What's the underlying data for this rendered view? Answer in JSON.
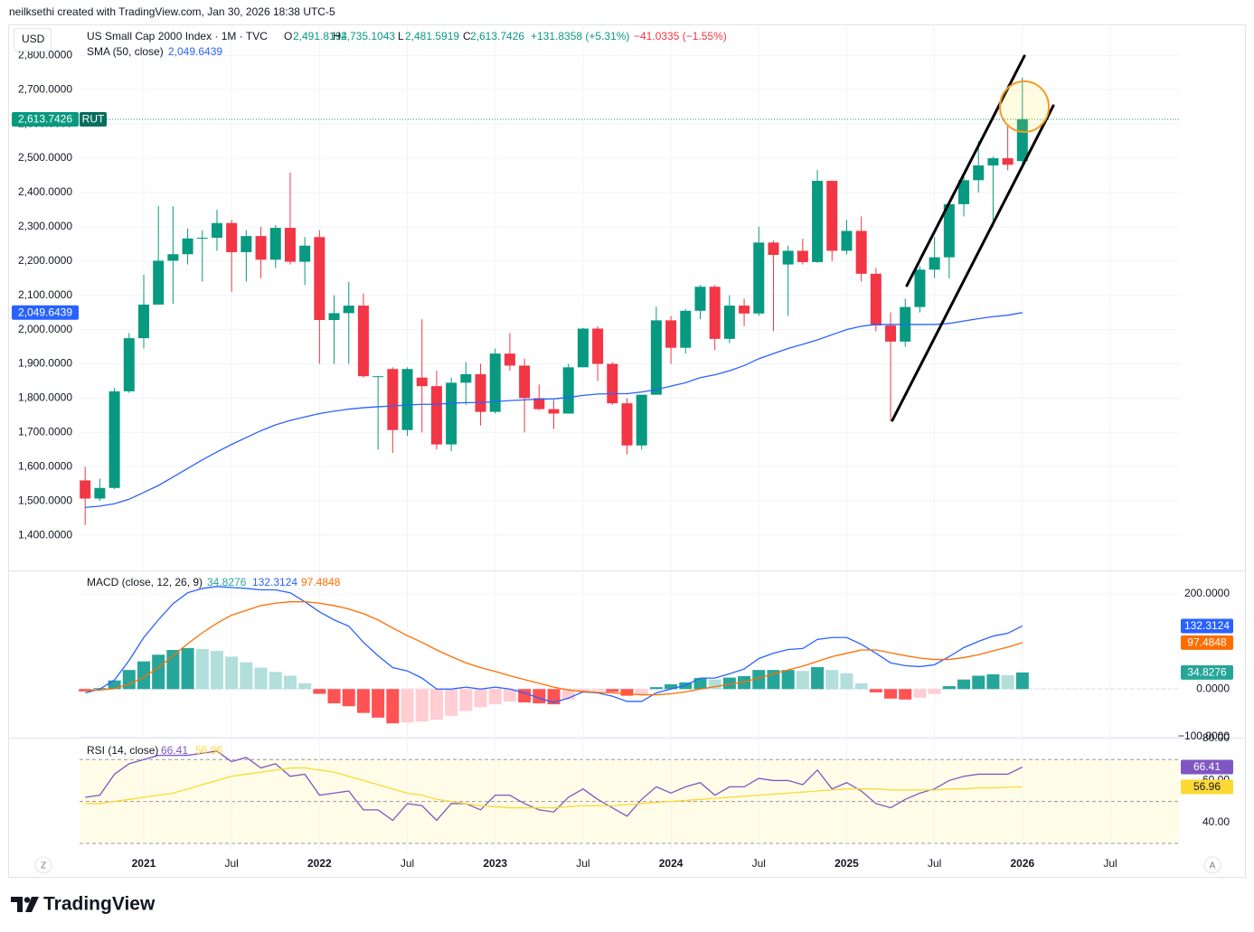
{
  "attribution": "neilksethi created with TradingView.com, Jan 30, 2026 18:38 UTC-5",
  "logo": "TradingView",
  "buttons": [
    "Z",
    "A"
  ],
  "chart_data": [
    {
      "type": "candlestick",
      "title": "US Small Cap 2000 Index · 1M · TVC",
      "currency": "USD",
      "symbol": "RUT",
      "ohlc_letters": [
        "O",
        "H",
        "L",
        "C"
      ],
      "change": "+131.8358 (+5.31%)",
      "extended_change": "−41.0335 (−1.55%)",
      "axis_side": "left",
      "grid": true,
      "x": [
        "2020-09",
        "2020-10",
        "2020-11",
        "2020-12",
        "2021-01",
        "2021-02",
        "2021-03",
        "2021-04",
        "2021-05",
        "2021-06",
        "2021-07",
        "2021-08",
        "2021-09",
        "2021-10",
        "2021-11",
        "2021-12",
        "2022-01",
        "2022-02",
        "2022-03",
        "2022-04",
        "2022-05",
        "2022-06",
        "2022-07",
        "2022-08",
        "2022-09",
        "2022-10",
        "2022-11",
        "2022-12",
        "2023-01",
        "2023-02",
        "2023-03",
        "2023-04",
        "2023-05",
        "2023-06",
        "2023-07",
        "2023-08",
        "2023-09",
        "2023-10",
        "2023-11",
        "2023-12",
        "2024-01",
        "2024-02",
        "2024-03",
        "2024-04",
        "2024-05",
        "2024-06",
        "2024-07",
        "2024-08",
        "2024-09",
        "2024-10",
        "2024-11",
        "2024-12",
        "2025-01",
        "2025-02",
        "2025-03",
        "2025-04",
        "2025-05",
        "2025-06",
        "2025-07",
        "2025-08",
        "2025-09",
        "2025-10",
        "2025-11",
        "2025-12",
        "2026-01"
      ],
      "xlim": [
        "2020-08",
        "2026-12"
      ],
      "xticks": [
        {
          "value": "2021-01",
          "label": "2021"
        },
        {
          "value": "2021-07",
          "label": "Jul"
        },
        {
          "value": "2022-01",
          "label": "2022"
        },
        {
          "value": "2022-07",
          "label": "Jul"
        },
        {
          "value": "2023-01",
          "label": "2023"
        },
        {
          "value": "2023-07",
          "label": "Jul"
        },
        {
          "value": "2024-01",
          "label": "2024"
        },
        {
          "value": "2024-07",
          "label": "Jul"
        },
        {
          "value": "2025-01",
          "label": "2025"
        },
        {
          "value": "2025-07",
          "label": "Jul"
        },
        {
          "value": "2026-01",
          "label": "2026"
        },
        {
          "value": "2026-07",
          "label": "Jul"
        }
      ],
      "ylim": [
        1300,
        2880
      ],
      "yticks": [
        {
          "value": 1400,
          "label": "1,400.0000"
        },
        {
          "value": 1500,
          "label": "1,500.0000"
        },
        {
          "value": 1600,
          "label": "1,600.0000"
        },
        {
          "value": 1700,
          "label": "1,700.0000"
        },
        {
          "value": 1800,
          "label": "1,800.0000"
        },
        {
          "value": 1900,
          "label": "1,900.0000"
        },
        {
          "value": 2000,
          "label": "2,000.0000"
        },
        {
          "value": 2100,
          "label": "2,100.0000"
        },
        {
          "value": 2200,
          "label": "2,200.0000"
        },
        {
          "value": 2300,
          "label": "2,300.0000"
        },
        {
          "value": 2400,
          "label": "2,400.0000"
        },
        {
          "value": 2500,
          "label": "2,500.0000"
        },
        {
          "value": 2600,
          "label": "2,600.0000"
        },
        {
          "value": 2700,
          "label": "2,700.0000"
        },
        {
          "value": 2800,
          "label": "2,800.0000"
        }
      ],
      "series": [
        {
          "style": "candles",
          "up_color": "#089981",
          "down_color": "#f23645",
          "symbol_color": "#056e5e",
          "open": [
            1560,
            1507,
            1538,
            1820,
            1975,
            2073,
            2201,
            2220,
            2266,
            2268,
            2311,
            2226,
            2273,
            2204,
            2297,
            2198,
            2270,
            2028,
            2048,
            2070,
            1864,
            1885,
            1707,
            1860,
            1835,
            1665,
            1845,
            1870,
            1760,
            1930,
            1895,
            1800,
            1768,
            1755,
            1890,
            2003,
            1900,
            1785,
            1662,
            1810,
            2027,
            1947,
            2055,
            2125,
            1973,
            2070,
            2047,
            2254,
            2190,
            2230,
            2197,
            2434,
            2230,
            2288,
            2163,
            2012,
            1965,
            2066,
            2175,
            2211,
            2366,
            2436,
            2479,
            2500,
            2491.8194
          ],
          "high": [
            1600,
            1565,
            1830,
            1990,
            2160,
            2360,
            2360,
            2295,
            2290,
            2350,
            2320,
            2290,
            2300,
            2305,
            2458,
            2270,
            2290,
            2100,
            2140,
            2105,
            1865,
            1890,
            1890,
            2030,
            1880,
            1860,
            1905,
            1900,
            1945,
            1990,
            1915,
            1840,
            1795,
            1900,
            2005,
            2010,
            1905,
            1800,
            1810,
            2067,
            2040,
            2060,
            2130,
            2130,
            2100,
            2090,
            2300,
            2260,
            2245,
            2265,
            2466,
            2435,
            2320,
            2330,
            2180,
            2050,
            2090,
            2185,
            2270,
            2375,
            2445,
            2550,
            2505,
            2600,
            2735.1043
          ],
          "low": [
            1430,
            1500,
            1535,
            1815,
            1945,
            2073,
            2075,
            2190,
            2140,
            2230,
            2110,
            2140,
            2150,
            2180,
            2190,
            2130,
            1900,
            1900,
            1900,
            1860,
            1650,
            1640,
            1690,
            1700,
            1650,
            1645,
            1780,
            1720,
            1755,
            1880,
            1700,
            1765,
            1710,
            1755,
            1890,
            1850,
            1780,
            1636,
            1650,
            1810,
            1900,
            1930,
            2030,
            1940,
            1960,
            2010,
            2040,
            1995,
            2040,
            2190,
            2195,
            2200,
            2220,
            2140,
            1995,
            1733,
            1950,
            2050,
            2150,
            2150,
            2330,
            2400,
            2300,
            2465,
            2481.5919
          ],
          "close": [
            1507,
            1538,
            1820,
            1975,
            2073,
            2201,
            2220,
            2266,
            2268,
            2311,
            2226,
            2273,
            2204,
            2297,
            2198,
            2245,
            2028,
            2048,
            2070,
            1864,
            1864,
            1707,
            1885,
            1835,
            1665,
            1845,
            1870,
            1760,
            1930,
            1895,
            1800,
            1768,
            1755,
            1890,
            2003,
            1900,
            1785,
            1662,
            1810,
            2027,
            1947,
            2055,
            2125,
            1973,
            2070,
            2047,
            2254,
            2218,
            2230,
            2197,
            2434,
            2230,
            2288,
            2163,
            2012,
            1965,
            2066,
            2175,
            2211,
            2366,
            2436,
            2479,
            2500,
            2481,
            2613.7426
          ],
          "last_labels": {
            "open": "2,491.8194",
            "high": "2,735.1043",
            "low": "2,481.5919",
            "close": "2,613.7426"
          }
        },
        {
          "style": "line",
          "name": "SMA (50, close)",
          "color": "#2962ff",
          "last_label": "2,049.6439",
          "values": [
            1481,
            1485,
            1492,
            1505,
            1525,
            1545,
            1570,
            1595,
            1620,
            1643,
            1665,
            1685,
            1705,
            1722,
            1735,
            1745,
            1755,
            1762,
            1768,
            1772,
            1775,
            1777,
            1780,
            1782,
            1782,
            1785,
            1787,
            1787,
            1790,
            1793,
            1795,
            1797,
            1798,
            1802,
            1808,
            1812,
            1813,
            1813,
            1818,
            1825,
            1835,
            1845,
            1860,
            1868,
            1880,
            1895,
            1915,
            1930,
            1945,
            1957,
            1970,
            1985,
            2000,
            2010,
            2015,
            2015,
            2015,
            2015,
            2015,
            2018,
            2025,
            2032,
            2038,
            2042,
            2049.6439
          ]
        }
      ]
    },
    {
      "type": "macd",
      "title": "MACD (close, 12, 26, 9)",
      "axis_side": "right",
      "grid": true,
      "ylim": [
        -100,
        245
      ],
      "yticks": [
        {
          "value": -100,
          "label": "−100.0000"
        },
        {
          "value": 0,
          "label": "0.0000"
        },
        {
          "value": 200,
          "label": "200.0000"
        }
      ],
      "hlines": [
        0
      ],
      "series": [
        {
          "style": "histogram",
          "colors": {
            "rise_up": "#26a69a",
            "fall_up": "#b2dfdb",
            "fall_down": "#ff5252",
            "rise_down": "#ffcdd2"
          },
          "values": [
            -5,
            2,
            18,
            40,
            58,
            72,
            82,
            86,
            84,
            80,
            68,
            56,
            45,
            36,
            28,
            12,
            -10,
            -30,
            -36,
            -50,
            -60,
            -72,
            -70,
            -68,
            -64,
            -56,
            -46,
            -38,
            -32,
            -26,
            -28,
            -30,
            -32,
            -22,
            -8,
            -4,
            -6,
            -14,
            -12,
            4,
            10,
            14,
            23,
            20,
            24,
            27,
            40,
            40,
            40,
            38,
            46,
            40,
            33,
            12,
            -7,
            -20,
            -22,
            -18,
            -10,
            6,
            20,
            28,
            31,
            29,
            34.8276
          ]
        },
        {
          "style": "line",
          "color": "#2962ff",
          "values": [
            -8,
            0,
            19,
            60,
            108,
            145,
            179,
            202,
            211,
            215,
            213,
            211,
            208,
            208,
            202,
            183,
            162,
            145,
            132,
            98,
            70,
            45,
            38,
            23,
            0,
            0,
            4,
            0,
            4,
            0,
            -8,
            -19,
            -28,
            -19,
            -6,
            -8,
            -15,
            -26,
            -26,
            -8,
            0,
            8,
            23,
            23,
            32,
            42,
            64,
            75,
            83,
            85,
            104,
            108,
            108,
            94,
            75,
            55,
            49,
            47,
            51,
            68,
            87,
            100,
            111,
            117,
            132.3124
          ]
        },
        {
          "style": "line",
          "color": "#ff6d00",
          "values": [
            -3,
            -2,
            1,
            10,
            25,
            45,
            70,
            95,
            118,
            138,
            155,
            165,
            175,
            180,
            183,
            183,
            180,
            175,
            168,
            158,
            145,
            128,
            112,
            98,
            82,
            68,
            55,
            45,
            37,
            28,
            20,
            12,
            4,
            -2,
            -5,
            -7,
            -8,
            -10,
            -12,
            -12,
            -10,
            -6,
            0,
            5,
            10,
            15,
            23,
            32,
            40,
            48,
            58,
            68,
            75,
            82,
            82,
            76,
            70,
            65,
            62,
            62,
            66,
            72,
            80,
            88,
            97.4848
          ]
        }
      ]
    },
    {
      "type": "rsi",
      "title": "RSI (14, close)",
      "axis_side": "right",
      "grid": false,
      "ylim": [
        27,
        80
      ],
      "yticks": [
        {
          "value": 40,
          "label": "40.00"
        },
        {
          "value": 60,
          "label": "60.00"
        },
        {
          "value": 80,
          "label": "80.00"
        }
      ],
      "band": [
        30,
        70
      ],
      "band_color": "rgba(255,235,59,0.12)",
      "hlines": [
        70,
        50,
        30
      ],
      "series": [
        {
          "style": "line",
          "color": "#7e57c2",
          "values": [
            52,
            53,
            63,
            68,
            70,
            72,
            72,
            72,
            73,
            74,
            69,
            71,
            66,
            68,
            62,
            63,
            53,
            54,
            55,
            46,
            46,
            41,
            49,
            48,
            41,
            49,
            49,
            46,
            53,
            53,
            49,
            46,
            45,
            52,
            56,
            51,
            47,
            43,
            51,
            57,
            54,
            57,
            59,
            53,
            57,
            57,
            61,
            60,
            60,
            58,
            65,
            56,
            59,
            55,
            49,
            47,
            51,
            54,
            56,
            60,
            62,
            63,
            63,
            63,
            66.41
          ]
        },
        {
          "style": "line",
          "color": "#fdd835",
          "text_color": "#131722",
          "values": [
            49,
            49,
            50,
            51,
            52,
            53,
            54,
            56,
            58,
            60,
            62,
            63,
            64,
            65,
            66,
            66,
            65,
            64,
            62,
            60,
            58,
            56,
            54,
            53,
            51,
            50,
            49,
            48,
            47.5,
            47,
            47,
            47,
            47,
            47.5,
            48,
            48,
            48,
            48.5,
            49,
            49.5,
            50,
            50.5,
            51,
            51.5,
            52,
            52.5,
            53,
            53.5,
            54,
            54.5,
            55,
            55.5,
            56,
            56,
            56,
            55.5,
            55.5,
            55.5,
            55.5,
            56,
            56,
            56.5,
            56.5,
            56.8,
            56.96
          ]
        }
      ]
    }
  ]
}
